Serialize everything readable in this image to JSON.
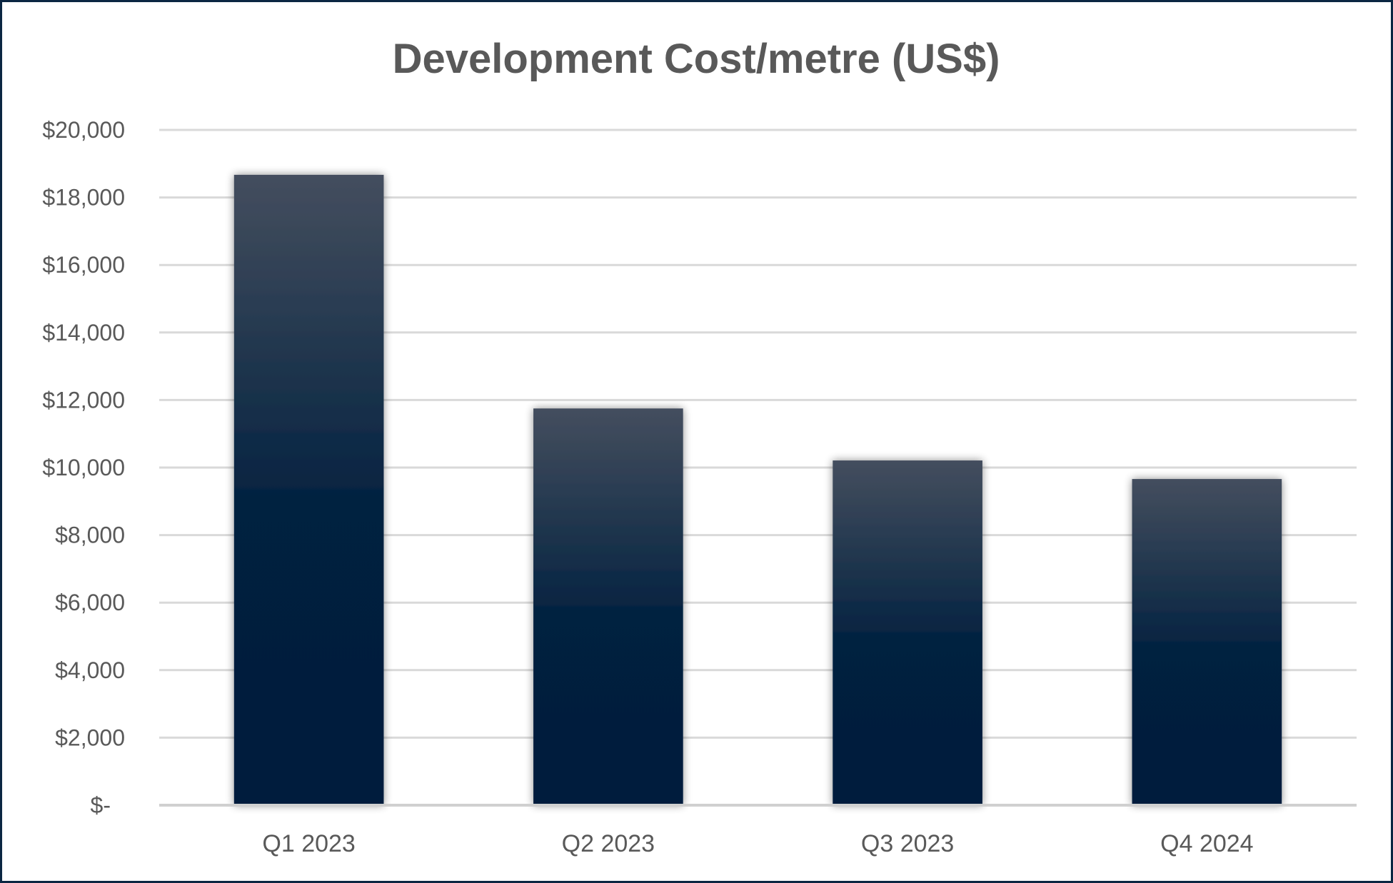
{
  "chart_data": {
    "type": "bar",
    "title": "Development Cost/metre (US$)",
    "xlabel": "",
    "ylabel": "",
    "categories": [
      "Q1 2023",
      "Q2 2023",
      "Q3 2023",
      "Q4 2024"
    ],
    "values": [
      18670,
      11750,
      10210,
      9660
    ],
    "ylim": [
      0,
      20000
    ],
    "yticks": [
      0,
      2000,
      4000,
      6000,
      8000,
      10000,
      12000,
      14000,
      16000,
      18000,
      20000
    ],
    "ytick_labels": [
      "$-",
      "$2,000",
      "$4,000",
      "$6,000",
      "$8,000",
      "$10,000",
      "$12,000",
      "$14,000",
      "$16,000",
      "$18,000",
      "$20,000"
    ],
    "grid": true,
    "legend": "none",
    "colors": {
      "bar_top": "#444e5e",
      "bar_mid": "#00203f",
      "bar_bottom": "#001e3c",
      "grid": "#d9d9d9",
      "axis": "#d0d0d0",
      "text": "#595959",
      "border": "#0b2642"
    }
  }
}
